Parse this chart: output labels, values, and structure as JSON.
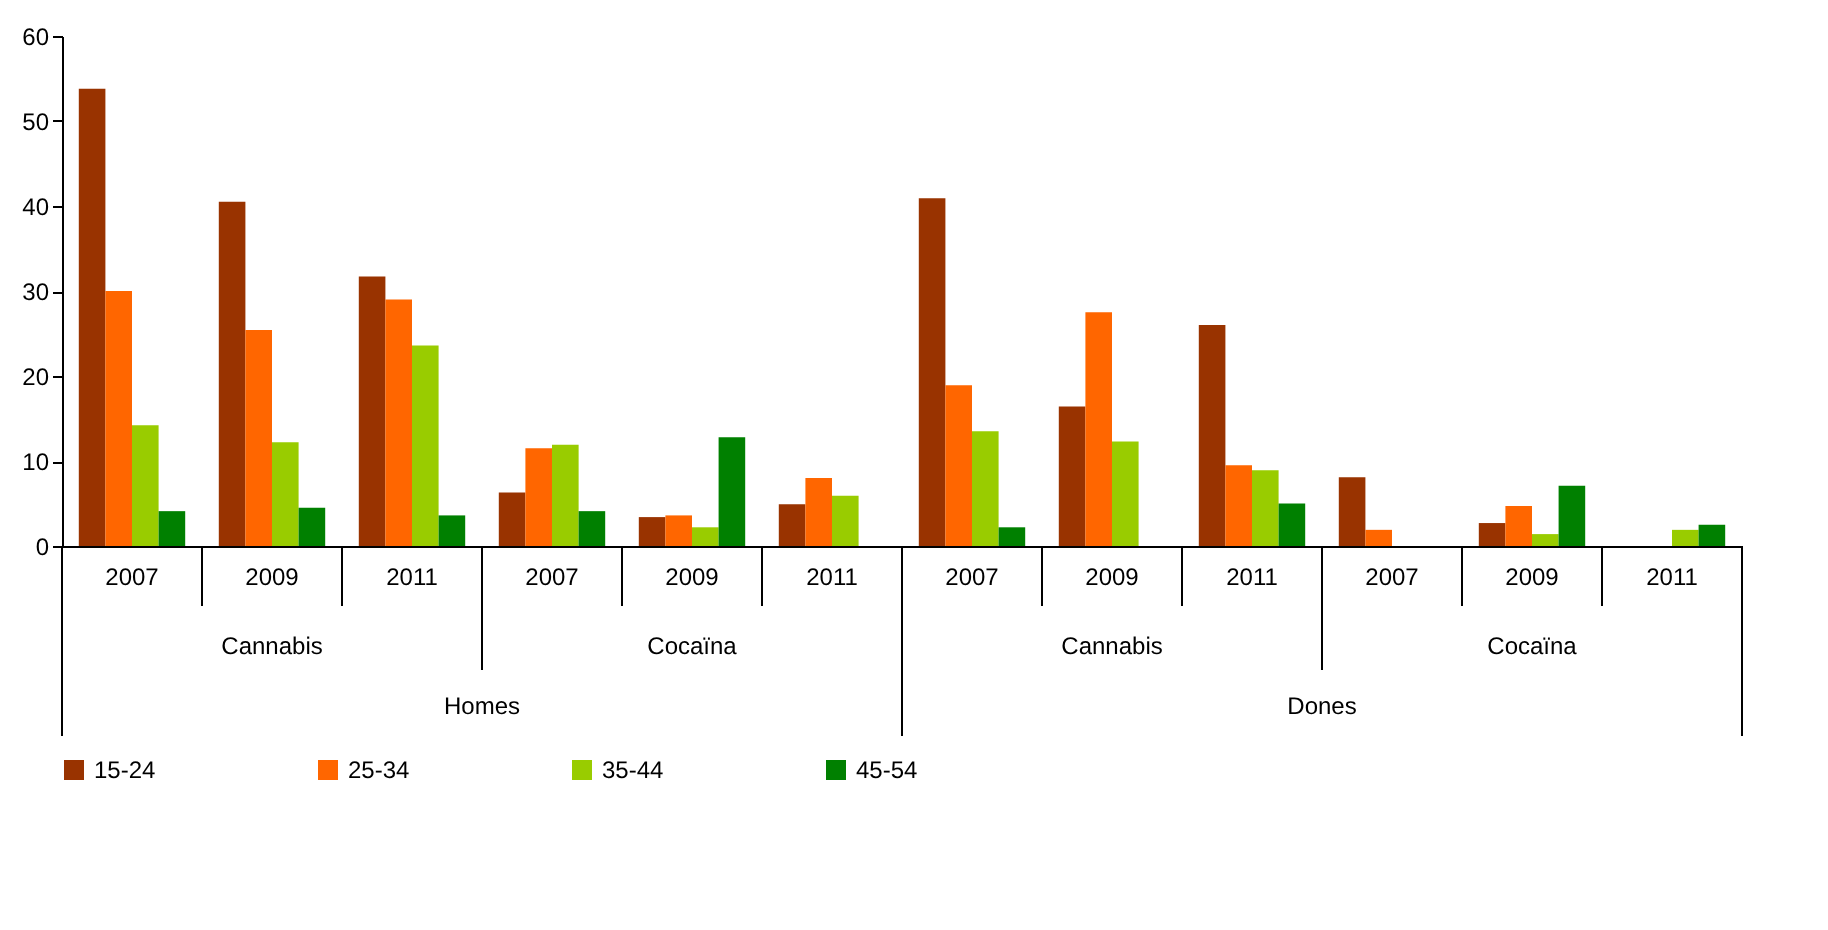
{
  "chart_data": {
    "type": "bar",
    "categories": [
      "2007",
      "2009",
      "2011",
      "2007",
      "2009",
      "2011",
      "2007",
      "2009",
      "2011",
      "2007",
      "2009",
      "2011"
    ],
    "series": [
      {
        "name": "15-24",
        "color": "#993300",
        "values": [
          53.8,
          40.5,
          31.7,
          6.3,
          3.4,
          4.9,
          40.9,
          16.4,
          26.0,
          8.1,
          2.7,
          null
        ]
      },
      {
        "name": "25-34",
        "color": "#ff6600",
        "values": [
          30.0,
          25.4,
          29.0,
          11.5,
          3.6,
          8.0,
          18.9,
          27.5,
          9.5,
          1.9,
          4.7,
          null
        ]
      },
      {
        "name": "35-44",
        "color": "#99cc00",
        "values": [
          14.2,
          12.2,
          23.6,
          11.9,
          2.2,
          5.9,
          13.5,
          12.3,
          8.9,
          null,
          1.4,
          1.9
        ]
      },
      {
        "name": "45-54",
        "color": "#008000",
        "values": [
          4.1,
          4.5,
          3.6,
          4.1,
          12.8,
          null,
          2.2,
          null,
          5.0,
          null,
          7.1,
          2.5
        ]
      }
    ],
    "annotations": [
      "Cannabis",
      "Cocaïna",
      "Cannabis",
      "Cocaïna",
      "Homes",
      "Dones"
    ],
    "ylim": [
      0,
      60
    ],
    "yticks": [
      0,
      10,
      20,
      30,
      40,
      50,
      60
    ],
    "grid": false,
    "legend": "bottom"
  }
}
